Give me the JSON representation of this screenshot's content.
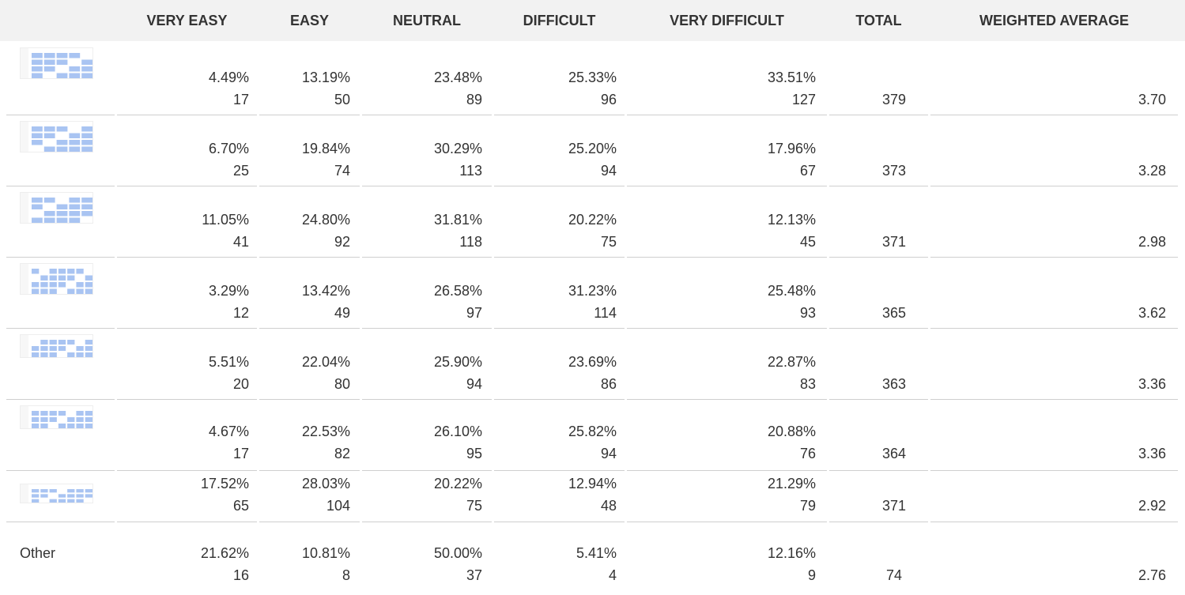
{
  "table": {
    "header": [
      "VERY EASY",
      "EASY",
      "NEUTRAL",
      "DIFFICULT",
      "VERY DIFFICULT",
      "TOTAL",
      "WEIGHTED AVERAGE"
    ],
    "rows": [
      {
        "cells": [
          {
            "percent": "4.49%",
            "count": "17"
          },
          {
            "percent": "13.19%",
            "count": "50"
          },
          {
            "percent": "23.48%",
            "count": "89"
          },
          {
            "percent": "25.33%",
            "count": "96"
          },
          {
            "percent": "33.51%",
            "count": "127"
          }
        ],
        "total": "379",
        "weighted_average": "3.70"
      },
      {
        "cells": [
          {
            "percent": "6.70%",
            "count": "25"
          },
          {
            "percent": "19.84%",
            "count": "74"
          },
          {
            "percent": "30.29%",
            "count": "113"
          },
          {
            "percent": "25.20%",
            "count": "94"
          },
          {
            "percent": "17.96%",
            "count": "67"
          }
        ],
        "total": "373",
        "weighted_average": "3.28"
      },
      {
        "cells": [
          {
            "percent": "11.05%",
            "count": "41"
          },
          {
            "percent": "24.80%",
            "count": "92"
          },
          {
            "percent": "31.81%",
            "count": "118"
          },
          {
            "percent": "20.22%",
            "count": "75"
          },
          {
            "percent": "12.13%",
            "count": "45"
          }
        ],
        "total": "371",
        "weighted_average": "2.98"
      },
      {
        "cells": [
          {
            "percent": "3.29%",
            "count": "12"
          },
          {
            "percent": "13.42%",
            "count": "49"
          },
          {
            "percent": "26.58%",
            "count": "97"
          },
          {
            "percent": "31.23%",
            "count": "114"
          },
          {
            "percent": "25.48%",
            "count": "93"
          }
        ],
        "total": "365",
        "weighted_average": "3.62"
      },
      {
        "cells": [
          {
            "percent": "5.51%",
            "count": "20"
          },
          {
            "percent": "22.04%",
            "count": "80"
          },
          {
            "percent": "25.90%",
            "count": "94"
          },
          {
            "percent": "23.69%",
            "count": "86"
          },
          {
            "percent": "22.87%",
            "count": "83"
          }
        ],
        "total": "363",
        "weighted_average": "3.36"
      },
      {
        "cells": [
          {
            "percent": "4.67%",
            "count": "17"
          },
          {
            "percent": "22.53%",
            "count": "82"
          },
          {
            "percent": "26.10%",
            "count": "95"
          },
          {
            "percent": "25.82%",
            "count": "94"
          },
          {
            "percent": "20.88%",
            "count": "76"
          }
        ],
        "total": "364",
        "weighted_average": "3.36"
      },
      {
        "cells": [
          {
            "percent": "17.52%",
            "count": "65"
          },
          {
            "percent": "28.03%",
            "count": "104"
          },
          {
            "percent": "20.22%",
            "count": "75"
          },
          {
            "percent": "12.94%",
            "count": "48"
          },
          {
            "percent": "21.29%",
            "count": "79"
          }
        ],
        "total": "371",
        "weighted_average": "2.92"
      },
      {
        "label": "Other",
        "cells": [
          {
            "percent": "21.62%",
            "count": "16"
          },
          {
            "percent": "10.81%",
            "count": "8"
          },
          {
            "percent": "50.00%",
            "count": "37"
          },
          {
            "percent": "5.41%",
            "count": "4"
          },
          {
            "percent": "12.16%",
            "count": "9"
          }
        ],
        "total": "74",
        "weighted_average": "2.76"
      }
    ]
  }
}
